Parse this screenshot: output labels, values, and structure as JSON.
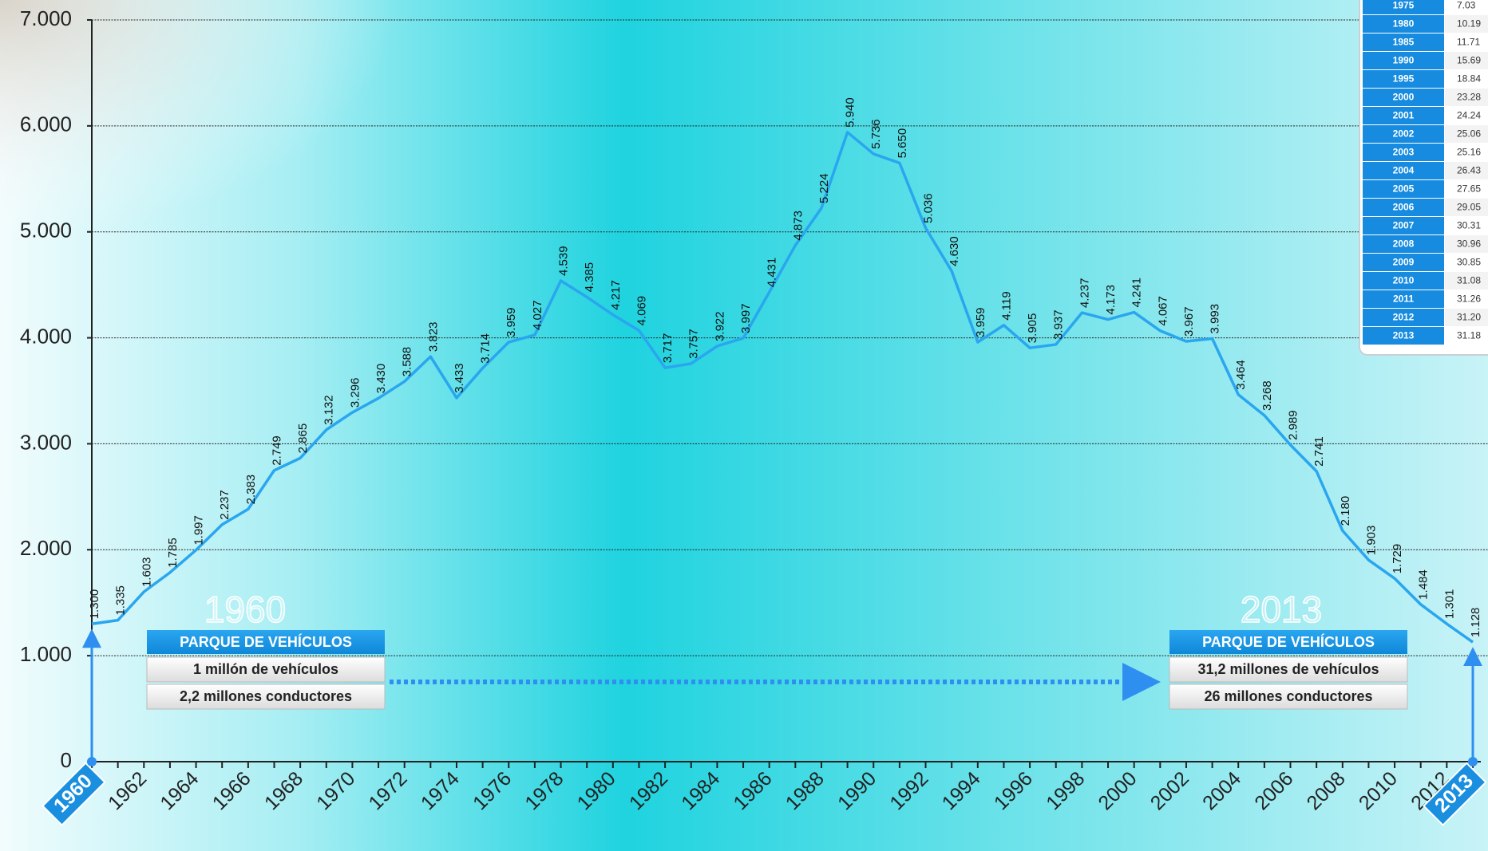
{
  "chart_data": {
    "type": "line",
    "x": [
      1960,
      1961,
      1962,
      1963,
      1964,
      1965,
      1966,
      1967,
      1968,
      1969,
      1970,
      1971,
      1972,
      1973,
      1974,
      1975,
      1976,
      1977,
      1978,
      1979,
      1980,
      1981,
      1982,
      1983,
      1984,
      1985,
      1986,
      1987,
      1988,
      1989,
      1990,
      1991,
      1992,
      1993,
      1994,
      1995,
      1996,
      1997,
      1998,
      1999,
      2000,
      2001,
      2002,
      2003,
      2004,
      2005,
      2006,
      2007,
      2008,
      2009,
      2010,
      2011,
      2012,
      2013
    ],
    "series": [
      {
        "color": "#2aa6ef",
        "values": [
          1300,
          1335,
          1603,
          1785,
          1997,
          2237,
          2383,
          2749,
          2865,
          3132,
          3296,
          3430,
          3588,
          3823,
          3433,
          3714,
          3959,
          4027,
          4539,
          4385,
          4217,
          4069,
          3717,
          3757,
          3922,
          3997,
          4431,
          4873,
          5224,
          5940,
          5736,
          5650,
          5036,
          4630,
          3959,
          4119,
          3905,
          3937,
          4237,
          4173,
          4241,
          4067,
          3967,
          3993,
          3464,
          3268,
          2989,
          2741,
          2180,
          1903,
          1729,
          1484,
          1301,
          1128
        ],
        "value_labels": [
          "1.300",
          "1.335",
          "1.603",
          "1.785",
          "1.997",
          "2.237",
          "2.383",
          "2.749",
          "2.865",
          "3.132",
          "3.296",
          "3.430",
          "3.588",
          "3.823",
          "3.433",
          "3.714",
          "3.959",
          "4.027",
          "4.539",
          "4.385",
          "4.217",
          "4.069",
          "3.717",
          "3.757",
          "3.922",
          "3.997",
          "4.431",
          "4.873",
          "5.224",
          "5.940",
          "5.736",
          "5.650",
          "5.036",
          "4.630",
          "3.959",
          "4.119",
          "3.905",
          "3.937",
          "4.237",
          "4.173",
          "4.241",
          "4.067",
          "3.967",
          "3.993",
          "3.464",
          "3.268",
          "2.989",
          "2.741",
          "2.180",
          "1.903",
          "1.729",
          "1.484",
          "1.301",
          "1.128"
        ]
      }
    ],
    "xlim": [
      1960,
      2013
    ],
    "xticks": [
      1960,
      1962,
      1964,
      1966,
      1968,
      1970,
      1972,
      1974,
      1976,
      1978,
      1980,
      1982,
      1984,
      1986,
      1988,
      1990,
      1992,
      1994,
      1996,
      1998,
      2000,
      2002,
      2004,
      2006,
      2008,
      2010,
      2012,
      2013
    ],
    "ylim": [
      0,
      7000
    ],
    "yticks": [
      0,
      {
        "value": 1000,
        "label": "1.000"
      },
      {
        "value": 2000,
        "label": "2.000"
      },
      {
        "value": 3000,
        "label": "3.000"
      },
      {
        "value": 4000,
        "label": "4.000"
      },
      {
        "value": 5000,
        "label": "5.000"
      },
      {
        "value": 6000,
        "label": "6.000"
      },
      {
        "value": 7000,
        "label": "7.000"
      }
    ],
    "grid": true,
    "annotations": [
      {
        "year": "1960",
        "title": "PARQUE DE VEHÍCULOS",
        "lines": [
          "1 millón de vehículos",
          "2,2 millones conductores"
        ]
      },
      {
        "year": "2013",
        "title": "PARQUE DE VEHÍCULOS",
        "lines": [
          "31,2 millones de vehículos",
          "26 millones conductores"
        ]
      }
    ],
    "inset_table": {
      "years": [
        "1975",
        "1980",
        "1985",
        "1990",
        "1995",
        "2000",
        "2001",
        "2002",
        "2003",
        "2004",
        "2005",
        "2006",
        "2007",
        "2008",
        "2009",
        "2010",
        "2011",
        "2012",
        "2013"
      ],
      "values": [
        "7.03",
        "10.19",
        "11.71",
        "15.69",
        "18.84",
        "23.28",
        "24.24",
        "25.06",
        "25.16",
        "26.43",
        "27.65",
        "29.05",
        "30.31",
        "30.96",
        "30.85",
        "31.08",
        "31.26",
        "31.20",
        "31.18"
      ]
    }
  }
}
